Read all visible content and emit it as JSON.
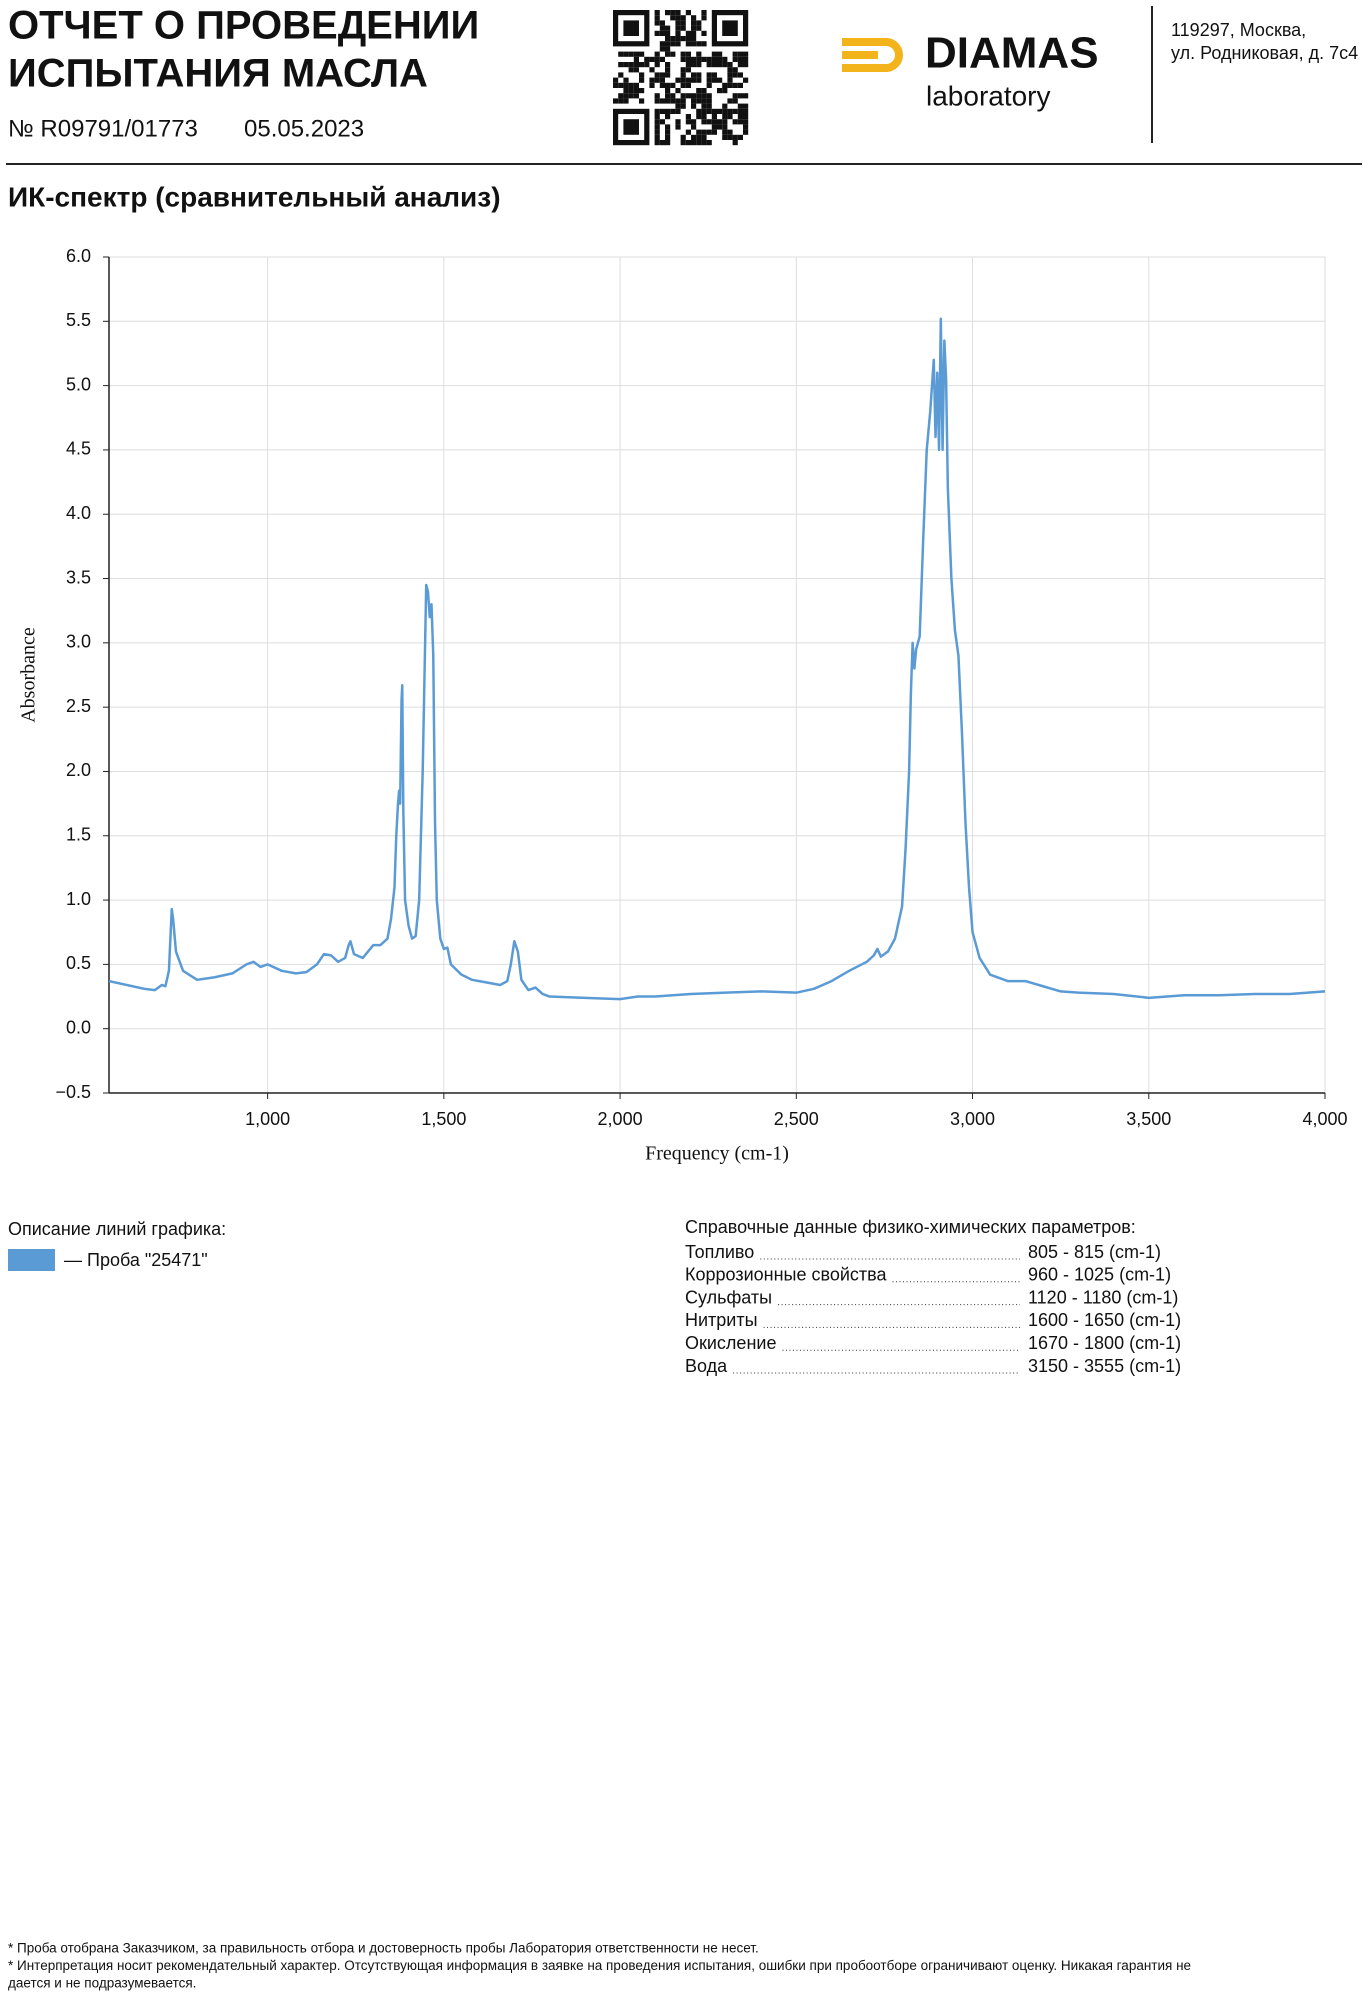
{
  "header": {
    "title_lines": [
      "ОТЧЕТ О ПРОВЕДЕНИИ",
      "ИСПЫТАНИЯ МАСЛА"
    ],
    "number": "№ R09791/01773",
    "date": "05.05.2023",
    "logo_name": "DIAMAS",
    "logo_sub": "laboratory",
    "address_lines": [
      "119297, Москва,",
      "ул. Родниковая, д. 7с4"
    ]
  },
  "section_title": "ИК-спектр (сравнительный анализ)",
  "chart_data": {
    "type": "line",
    "x_label": "Frequency (cm-1)",
    "y_label": "Absorbance",
    "legend_title": "Описание линий графика:",
    "grid": true,
    "xlim": [
      550,
      4000
    ],
    "xticks": [
      {
        "value": 1000,
        "label": "1,000"
      },
      {
        "value": 1500,
        "label": "1,500"
      },
      {
        "value": 2000,
        "label": "2,000"
      },
      {
        "value": 2500,
        "label": "2,500"
      },
      {
        "value": 3000,
        "label": "3,000"
      },
      {
        "value": 3500,
        "label": "3,500"
      },
      {
        "value": 4000,
        "label": "4,000"
      }
    ],
    "ylim": [
      -0.5,
      6
    ],
    "yticks": [
      {
        "value": -0.5,
        "label": "−0.5"
      },
      {
        "value": 0,
        "label": "0.0"
      },
      0.5,
      {
        "value": 1,
        "label": "1.0"
      },
      1.5,
      {
        "value": 2,
        "label": "2.0"
      },
      2.5,
      {
        "value": 3,
        "label": "3.0"
      },
      3.5,
      {
        "value": 4,
        "label": "4.0"
      },
      4.5,
      {
        "value": 5,
        "label": "5.0"
      },
      5.5,
      {
        "value": 6,
        "label": "6.0"
      }
    ],
    "x": [
      550,
      600,
      650,
      680,
      700,
      710,
      720,
      725,
      728,
      732,
      740,
      760,
      800,
      850,
      900,
      940,
      960,
      980,
      1000,
      1040,
      1080,
      1110,
      1140,
      1160,
      1180,
      1200,
      1220,
      1230,
      1235,
      1245,
      1270,
      1300,
      1320,
      1340,
      1350,
      1360,
      1365,
      1370,
      1373,
      1376,
      1380,
      1382,
      1385,
      1390,
      1400,
      1410,
      1420,
      1430,
      1440,
      1450,
      1455,
      1460,
      1465,
      1470,
      1475,
      1480,
      1490,
      1500,
      1510,
      1520,
      1550,
      1580,
      1620,
      1660,
      1680,
      1690,
      1700,
      1710,
      1720,
      1740,
      1760,
      1780,
      1800,
      1900,
      2000,
      2050,
      2100,
      2200,
      2300,
      2400,
      2500,
      2550,
      2600,
      2650,
      2700,
      2720,
      2730,
      2740,
      2760,
      2780,
      2800,
      2810,
      2820,
      2825,
      2830,
      2835,
      2840,
      2850,
      2860,
      2870,
      2880,
      2890,
      2895,
      2900,
      2905,
      2910,
      2915,
      2920,
      2925,
      2930,
      2940,
      2950,
      2960,
      2970,
      2980,
      2990,
      3000,
      3020,
      3050,
      3100,
      3150,
      3200,
      3250,
      3300,
      3400,
      3500,
      3600,
      3700,
      3800,
      3900,
      4000
    ],
    "series": [
      {
        "name": "— Проба \"25471\"",
        "color": "#5b9bd5",
        "values": [
          0.37,
          0.34,
          0.31,
          0.3,
          0.34,
          0.33,
          0.45,
          0.75,
          0.93,
          0.85,
          0.6,
          0.45,
          0.38,
          0.4,
          0.43,
          0.5,
          0.52,
          0.48,
          0.5,
          0.45,
          0.43,
          0.44,
          0.5,
          0.58,
          0.57,
          0.52,
          0.55,
          0.65,
          0.68,
          0.58,
          0.55,
          0.65,
          0.65,
          0.7,
          0.85,
          1.1,
          1.5,
          1.75,
          1.85,
          1.75,
          2.55,
          2.67,
          1.7,
          1.0,
          0.8,
          0.7,
          0.72,
          1.0,
          2.0,
          3.45,
          3.4,
          3.2,
          3.3,
          2.9,
          1.6,
          1.0,
          0.7,
          0.62,
          0.63,
          0.5,
          0.42,
          0.38,
          0.36,
          0.34,
          0.37,
          0.5,
          0.68,
          0.6,
          0.38,
          0.3,
          0.32,
          0.27,
          0.25,
          0.24,
          0.23,
          0.25,
          0.25,
          0.27,
          0.28,
          0.29,
          0.28,
          0.31,
          0.37,
          0.45,
          0.52,
          0.57,
          0.62,
          0.56,
          0.6,
          0.7,
          0.95,
          1.4,
          2.0,
          2.6,
          3.0,
          2.8,
          2.95,
          3.05,
          3.8,
          4.5,
          4.8,
          5.2,
          4.6,
          5.1,
          4.5,
          5.52,
          4.5,
          5.35,
          5.05,
          4.2,
          3.5,
          3.1,
          2.9,
          2.3,
          1.6,
          1.1,
          0.75,
          0.55,
          0.42,
          0.37,
          0.37,
          0.33,
          0.29,
          0.28,
          0.27,
          0.24,
          0.26,
          0.26,
          0.27,
          0.27,
          0.29
        ]
      }
    ]
  },
  "reference": {
    "title": "Справочные данные физико-химических параметров:",
    "rows": [
      {
        "name": "Топливо",
        "range": "805 - 815 (cm-1)"
      },
      {
        "name": "Коррозионные свойства",
        "range": "960 - 1025 (cm-1)"
      },
      {
        "name": "Сульфаты",
        "range": "1120 - 1180 (cm-1)"
      },
      {
        "name": "Нитриты",
        "range": "1600 - 1650 (cm-1)"
      },
      {
        "name": "Окисление",
        "range": "1670 - 1800 (cm-1)"
      },
      {
        "name": "Вода",
        "range": "3150 - 3555 (cm-1)"
      }
    ]
  },
  "footer_lines": [
    "* Проба отобрана Заказчиком, за правильность отбора и достоверность пробы Лаборатория ответственности не несет.",
    "* Интерпретация носит рекомендательный характер. Отсутствующая информация в заявке на проведения испытания, ошибки при пробоотборе ограничивают оценку. Никакая гарантия не",
    "дается и не подразумевается."
  ]
}
